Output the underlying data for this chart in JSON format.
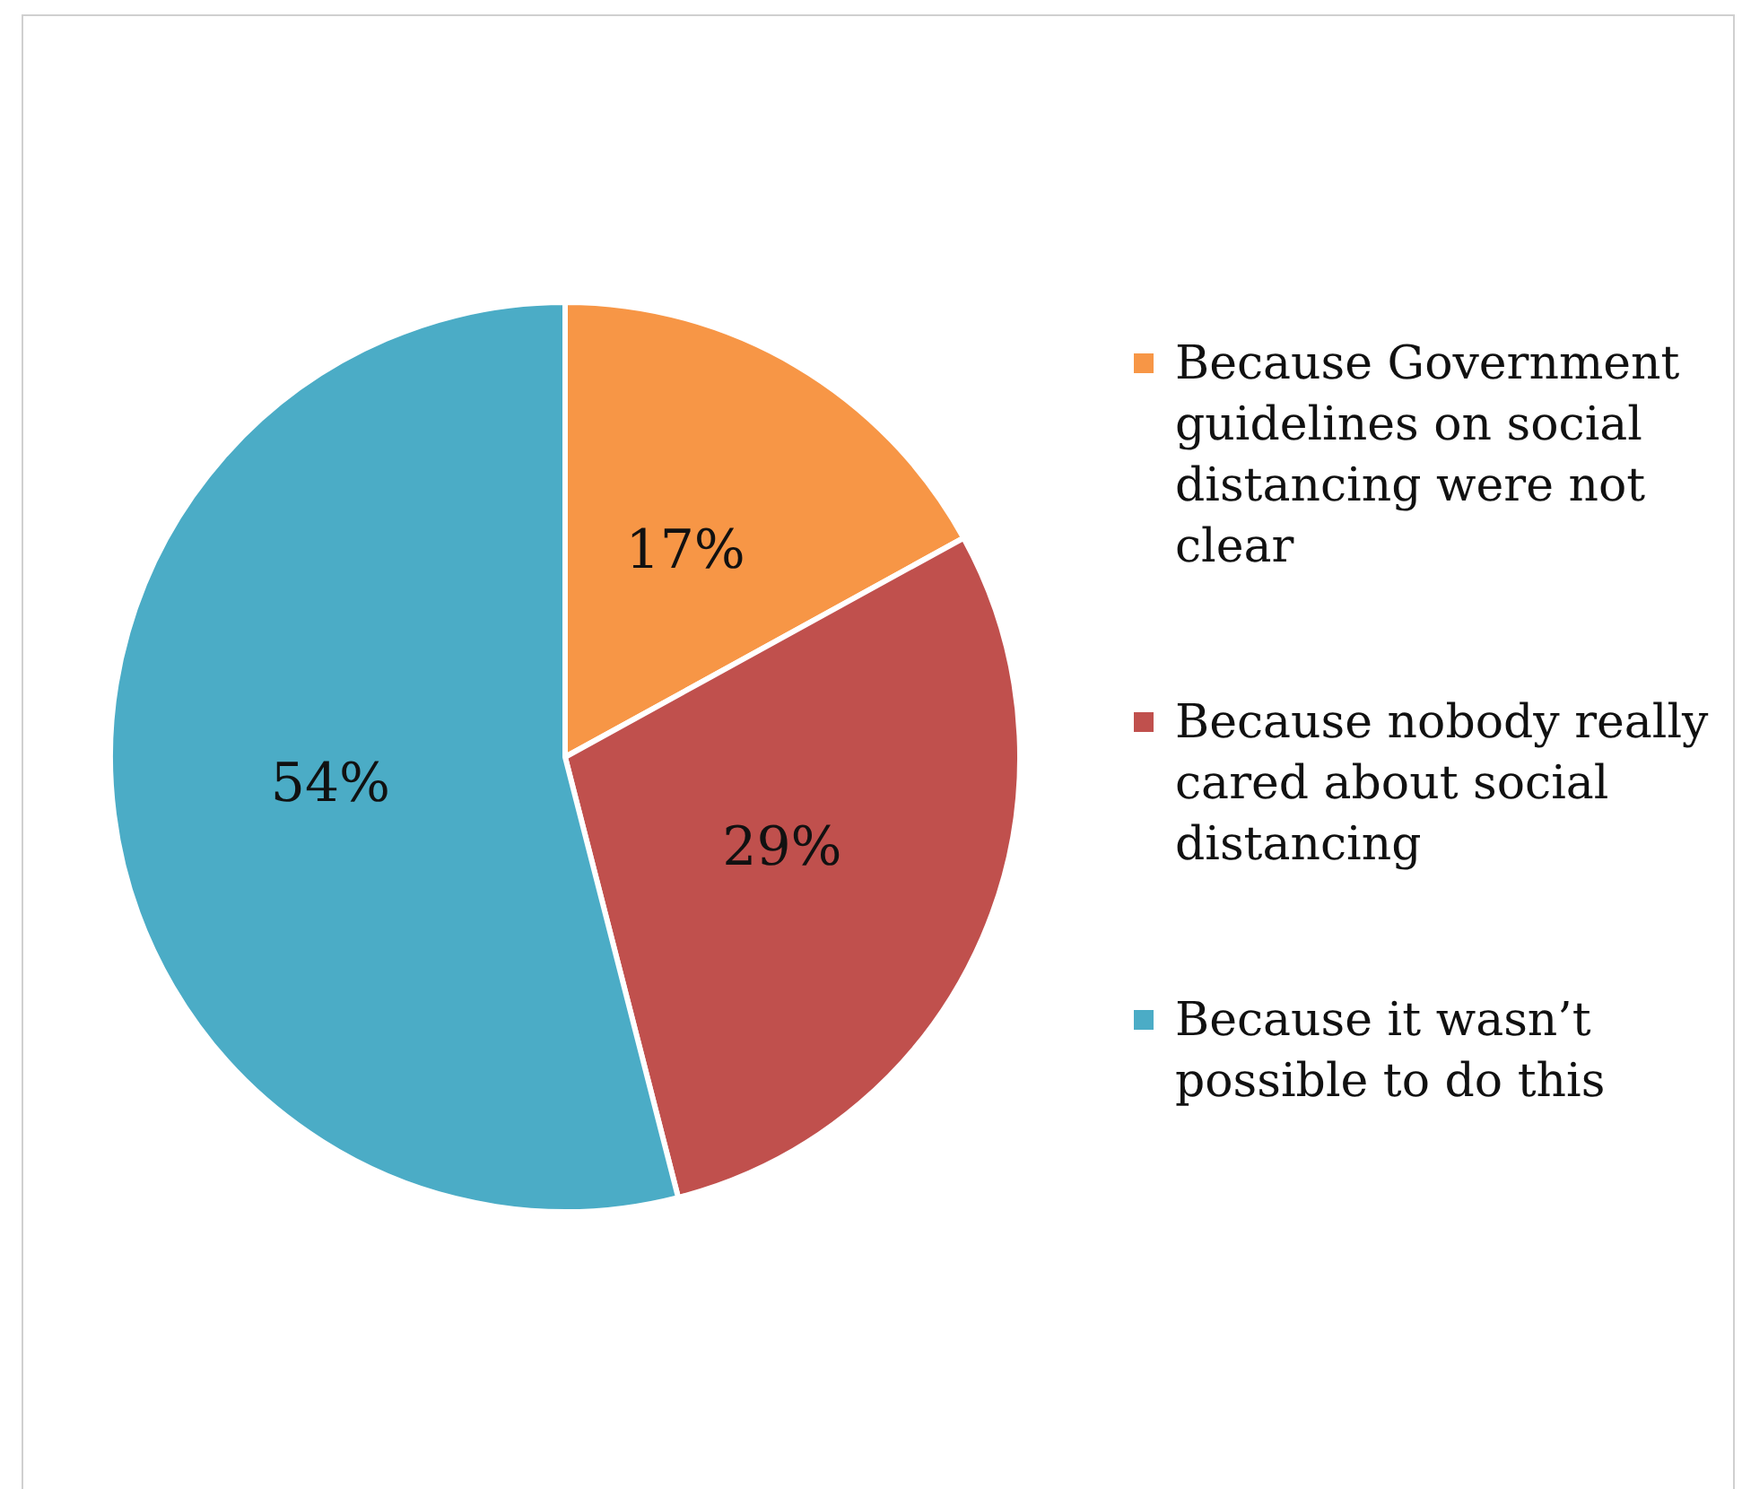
{
  "chart_data": {
    "type": "pie",
    "categories": [
      "Because Government guidelines on social distancing were not clear",
      "Because nobody really cared about social distancing",
      "Because it wasn’t possible to do this"
    ],
    "values": [
      17,
      29,
      54
    ],
    "colors": [
      "#f79646",
      "#c0504d",
      "#4bacc6"
    ],
    "value_labels": [
      "17%",
      "29%",
      "54%"
    ],
    "legend": "right"
  }
}
